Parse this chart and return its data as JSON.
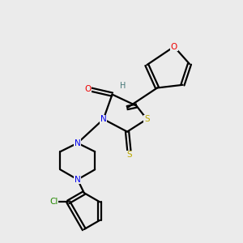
{
  "bg_color": "#ebebeb",
  "atom_colors": {
    "C": "#000000",
    "N": "#0000ee",
    "O": "#ee0000",
    "S": "#bbaa00",
    "Cl": "#228800",
    "H": "#447777"
  },
  "bond_color": "#000000"
}
